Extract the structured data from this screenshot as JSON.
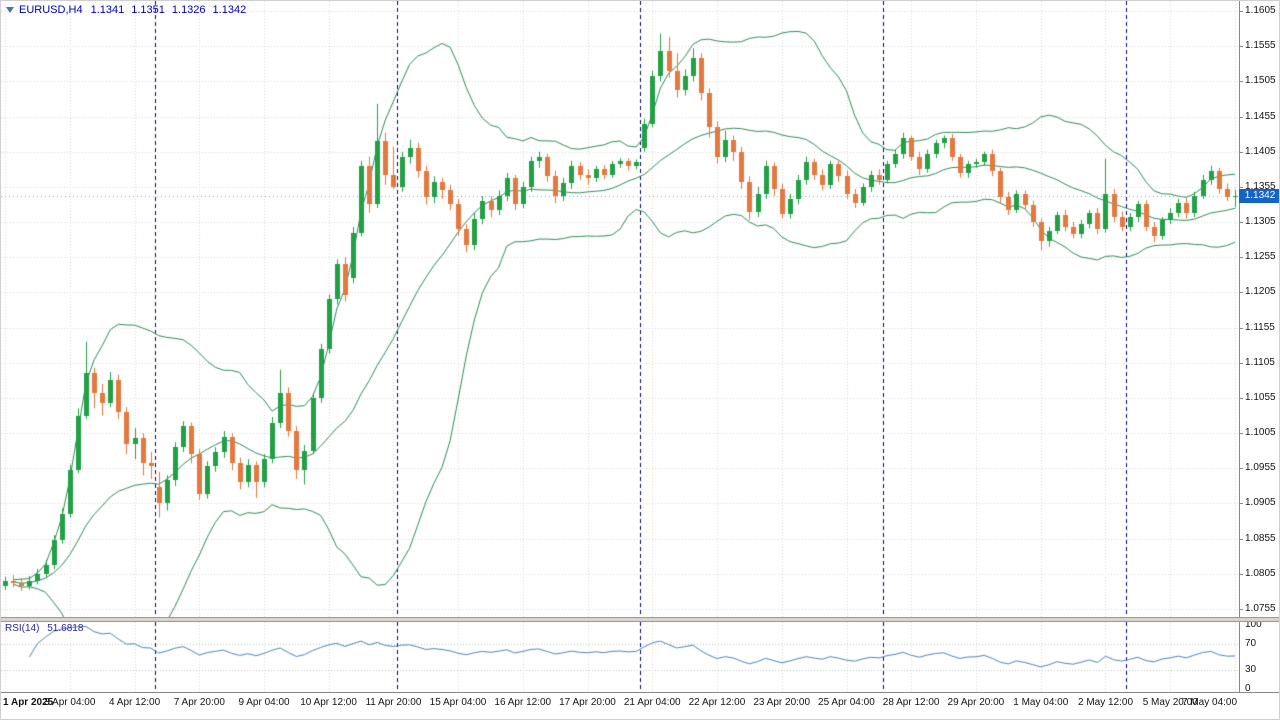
{
  "header": {
    "symbol": "EURUSD,H4",
    "open": "1.1341",
    "high": "1.1351",
    "low": "1.1326",
    "close": "1.1342"
  },
  "rsi_caption": {
    "name": "RSI(14)",
    "value": "51.6818"
  },
  "colors": {
    "bull": "#22a046",
    "bear": "#e4793f",
    "bands": "#2e8b57",
    "grid": "#d8d8d8",
    "separator": "#000080",
    "rsi": "#4f81bd",
    "rsi_level": "#c0c0c0",
    "price_line": "#7da7d9",
    "badge_bg": "#1464c8",
    "header_text": "#0000b4"
  },
  "chart_data": {
    "type": "candlestick",
    "symbol": "EURUSD",
    "timeframe": "H4",
    "price_axis": {
      "ticks": [
        "1.1605",
        "1.1555",
        "1.1505",
        "1.1455",
        "1.1405",
        "1.1355",
        "1.1305",
        "1.1255",
        "1.1205",
        "1.1155",
        "1.1105",
        "1.1055",
        "1.1005",
        "1.0955",
        "1.0905",
        "1.0855",
        "1.0805",
        "1.0755"
      ]
    },
    "time_labels": [
      {
        "t": "1 Apr 2025",
        "bar": 0
      },
      {
        "t": "3 Apr 04:00",
        "bar": 8
      },
      {
        "t": "4 Apr 12:00",
        "bar": 16
      },
      {
        "t": "7 Apr 20:00",
        "bar": 24
      },
      {
        "t": "9 Apr 04:00",
        "bar": 32
      },
      {
        "t": "10 Apr 12:00",
        "bar": 40
      },
      {
        "t": "11 Apr 20:00",
        "bar": 48
      },
      {
        "t": "15 Apr 04:00",
        "bar": 56
      },
      {
        "t": "16 Apr 12:00",
        "bar": 64
      },
      {
        "t": "17 Apr 20:00",
        "bar": 72
      },
      {
        "t": "21 Apr 04:00",
        "bar": 80
      },
      {
        "t": "22 Apr 12:00",
        "bar": 88
      },
      {
        "t": "23 Apr 20:00",
        "bar": 96
      },
      {
        "t": "25 Apr 04:00",
        "bar": 104
      },
      {
        "t": "28 Apr 12:00",
        "bar": 112
      },
      {
        "t": "29 Apr 20:00",
        "bar": 120
      },
      {
        "t": "1 May 04:00",
        "bar": 128
      },
      {
        "t": "2 May 12:00",
        "bar": 136
      },
      {
        "t": "5 May 20:00",
        "bar": 144
      },
      {
        "t": "7 May 04:00",
        "bar": 152
      }
    ],
    "separators": [
      19,
      49,
      79,
      109,
      139
    ],
    "indicators": {
      "bollinger": {
        "period": 20,
        "deviation": 2
      },
      "rsi": {
        "period": 14,
        "value": "51.6818",
        "levels": [
          100,
          70,
          30,
          0
        ]
      }
    },
    "current_price": "1.1342",
    "candles": [
      [
        1.0788,
        1.0801,
        1.0782,
        1.0795
      ],
      [
        1.0795,
        1.0803,
        1.0786,
        1.0792
      ],
      [
        1.0792,
        1.0799,
        1.0781,
        1.0788
      ],
      [
        1.0788,
        1.0802,
        1.0783,
        1.0795
      ],
      [
        1.0795,
        1.0812,
        1.079,
        1.0805
      ],
      [
        1.0805,
        1.0825,
        1.08,
        1.0818
      ],
      [
        1.0818,
        1.086,
        1.0812,
        1.0853
      ],
      [
        1.0853,
        1.0898,
        1.0848,
        1.089
      ],
      [
        1.089,
        1.096,
        1.0885,
        1.0953
      ],
      [
        1.0953,
        1.104,
        1.0948,
        1.103
      ],
      [
        1.103,
        1.1135,
        1.1025,
        1.109
      ],
      [
        1.109,
        1.1098,
        1.104,
        1.1062
      ],
      [
        1.1062,
        1.1075,
        1.103,
        1.1048
      ],
      [
        1.1048,
        1.1092,
        1.1042,
        1.108
      ],
      [
        1.108,
        1.1088,
        1.1025,
        1.1035
      ],
      [
        1.1035,
        1.1042,
        1.0975,
        1.099
      ],
      [
        1.099,
        1.1012,
        1.0968,
        1.0998
      ],
      [
        1.0998,
        1.1005,
        1.0945,
        1.0962
      ],
      [
        1.0962,
        1.0978,
        1.094,
        1.0958
      ],
      [
        1.0928,
        1.095,
        1.0885,
        1.0905
      ],
      [
        1.0905,
        1.0945,
        1.0895,
        1.0938
      ],
      [
        1.0938,
        1.0992,
        1.093,
        1.0985
      ],
      [
        1.0985,
        1.1022,
        1.0978,
        1.1015
      ],
      [
        1.1015,
        1.102,
        1.0962,
        1.0975
      ],
      [
        1.0975,
        1.0982,
        1.091,
        1.0918
      ],
      [
        1.0918,
        1.0965,
        1.0912,
        1.0958
      ],
      [
        1.0958,
        1.0985,
        1.095,
        1.0978
      ],
      [
        1.0978,
        1.1008,
        1.097,
        1.1
      ],
      [
        1.1,
        1.1005,
        1.0952,
        1.0962
      ],
      [
        1.0962,
        1.097,
        1.0925,
        1.0935
      ],
      [
        1.0935,
        1.0968,
        1.0928,
        1.096
      ],
      [
        1.096,
        1.0965,
        1.0913,
        1.0935
      ],
      [
        1.0935,
        1.0975,
        1.0928,
        1.0968
      ],
      [
        1.0968,
        1.1028,
        1.0962,
        1.102
      ],
      [
        1.102,
        1.1095,
        1.1012,
        1.1062
      ],
      [
        1.1062,
        1.107,
        1.1,
        1.1008
      ],
      [
        1.1008,
        1.1015,
        1.094,
        1.0952
      ],
      [
        1.0952,
        1.0988,
        1.0932,
        1.098
      ],
      [
        1.098,
        1.1062,
        1.0975,
        1.1055
      ],
      [
        1.1055,
        1.1132,
        1.1048,
        1.1125
      ],
      [
        1.1125,
        1.1202,
        1.1118,
        1.1195
      ],
      [
        1.1195,
        1.1252,
        1.1188,
        1.1245
      ],
      [
        1.1245,
        1.1255,
        1.1192,
        1.1202
      ],
      [
        1.1225,
        1.1298,
        1.1218,
        1.129
      ],
      [
        1.129,
        1.1392,
        1.1285,
        1.1385
      ],
      [
        1.1385,
        1.1398,
        1.1318,
        1.133
      ],
      [
        1.133,
        1.1473,
        1.1325,
        1.142
      ],
      [
        1.142,
        1.1432,
        1.1358,
        1.1372
      ],
      [
        1.1372,
        1.1412,
        1.1352,
        1.1355
      ],
      [
        1.1355,
        1.1405,
        1.1348,
        1.1398
      ],
      [
        1.1398,
        1.1422,
        1.1388,
        1.141
      ],
      [
        1.141,
        1.1418,
        1.1368,
        1.1378
      ],
      [
        1.1378,
        1.1385,
        1.133,
        1.134
      ],
      [
        1.134,
        1.137,
        1.1332,
        1.1362
      ],
      [
        1.1362,
        1.1368,
        1.1338,
        1.135
      ],
      [
        1.135,
        1.1358,
        1.1322,
        1.133
      ],
      [
        1.133,
        1.1338,
        1.1285,
        1.1295
      ],
      [
        1.1295,
        1.1302,
        1.1262,
        1.1272
      ],
      [
        1.1272,
        1.1318,
        1.1265,
        1.131
      ],
      [
        1.131,
        1.1342,
        1.1302,
        1.1335
      ],
      [
        1.1335,
        1.1342,
        1.1312,
        1.1322
      ],
      [
        1.1322,
        1.135,
        1.1315,
        1.1342
      ],
      [
        1.1342,
        1.1375,
        1.1335,
        1.1368
      ],
      [
        1.1368,
        1.1372,
        1.1322,
        1.133
      ],
      [
        1.133,
        1.1362,
        1.1325,
        1.1355
      ],
      [
        1.1355,
        1.1398,
        1.1348,
        1.1392
      ],
      [
        1.1392,
        1.1405,
        1.1382,
        1.1398
      ],
      [
        1.1398,
        1.1402,
        1.1362,
        1.137
      ],
      [
        1.137,
        1.1378,
        1.1332,
        1.1342
      ],
      [
        1.1342,
        1.1368,
        1.1335,
        1.136
      ],
      [
        1.136,
        1.1392,
        1.1352,
        1.1385
      ],
      [
        1.1385,
        1.139,
        1.1365,
        1.1372
      ],
      [
        1.1372,
        1.138,
        1.1358,
        1.1368
      ],
      [
        1.1368,
        1.1385,
        1.1362,
        1.138
      ],
      [
        1.138,
        1.1386,
        1.1366,
        1.1372
      ],
      [
        1.1372,
        1.1392,
        1.1368,
        1.1388
      ],
      [
        1.1388,
        1.1396,
        1.1382,
        1.1392
      ],
      [
        1.1392,
        1.1396,
        1.1378,
        1.1385
      ],
      [
        1.1385,
        1.1394,
        1.138,
        1.139
      ],
      [
        1.141,
        1.1452,
        1.1405,
        1.1445
      ],
      [
        1.1445,
        1.152,
        1.144,
        1.1512
      ],
      [
        1.1512,
        1.1573,
        1.1505,
        1.1548
      ],
      [
        1.1548,
        1.1568,
        1.151,
        1.152
      ],
      [
        1.152,
        1.1545,
        1.1482,
        1.1492
      ],
      [
        1.1492,
        1.1522,
        1.1485,
        1.1512
      ],
      [
        1.1512,
        1.1552,
        1.1505,
        1.1538
      ],
      [
        1.1538,
        1.1545,
        1.1478,
        1.1488
      ],
      [
        1.1488,
        1.1495,
        1.1425,
        1.144
      ],
      [
        1.144,
        1.1448,
        1.1388,
        1.1398
      ],
      [
        1.1398,
        1.1435,
        1.139,
        1.1422
      ],
      [
        1.1422,
        1.1428,
        1.1392,
        1.1405
      ],
      [
        1.1405,
        1.1412,
        1.1352,
        1.1362
      ],
      [
        1.1362,
        1.137,
        1.1308,
        1.132
      ],
      [
        1.132,
        1.1355,
        1.1312,
        1.1345
      ],
      [
        1.1345,
        1.1392,
        1.1338,
        1.1385
      ],
      [
        1.1385,
        1.139,
        1.1342,
        1.1352
      ],
      [
        1.1352,
        1.136,
        1.131,
        1.1316
      ],
      [
        1.1316,
        1.1345,
        1.131,
        1.1338
      ],
      [
        1.1338,
        1.1372,
        1.133,
        1.1365
      ],
      [
        1.1365,
        1.1398,
        1.1358,
        1.139
      ],
      [
        1.139,
        1.1395,
        1.1365,
        1.1372
      ],
      [
        1.1372,
        1.138,
        1.135,
        1.1358
      ],
      [
        1.1358,
        1.1392,
        1.1352,
        1.1388
      ],
      [
        1.1388,
        1.1392,
        1.1362,
        1.137
      ],
      [
        1.137,
        1.1378,
        1.1338,
        1.1345
      ],
      [
        1.1345,
        1.1352,
        1.1325,
        1.1332
      ],
      [
        1.1332,
        1.136,
        1.1328,
        1.1355
      ],
      [
        1.1355,
        1.1378,
        1.1348,
        1.1372
      ],
      [
        1.1372,
        1.138,
        1.1358,
        1.1365
      ],
      [
        1.1365,
        1.1392,
        1.136,
        1.1388
      ],
      [
        1.1388,
        1.1408,
        1.1382,
        1.1402
      ],
      [
        1.1402,
        1.1432,
        1.1395,
        1.1425
      ],
      [
        1.1425,
        1.1428,
        1.1392,
        1.1398
      ],
      [
        1.1398,
        1.1405,
        1.1372,
        1.138
      ],
      [
        1.138,
        1.1408,
        1.1375,
        1.1402
      ],
      [
        1.1402,
        1.1422,
        1.1396,
        1.1418
      ],
      [
        1.1418,
        1.1428,
        1.141,
        1.1425
      ],
      [
        1.1425,
        1.143,
        1.1392,
        1.1398
      ],
      [
        1.1398,
        1.1402,
        1.1368,
        1.1375
      ],
      [
        1.1375,
        1.1392,
        1.1368,
        1.1388
      ],
      [
        1.1388,
        1.1395,
        1.1382,
        1.139
      ],
      [
        1.139,
        1.1405,
        1.1385,
        1.1402
      ],
      [
        1.1402,
        1.1408,
        1.137,
        1.1378
      ],
      [
        1.1378,
        1.1382,
        1.1332,
        1.134
      ],
      [
        1.134,
        1.1348,
        1.1315,
        1.1322
      ],
      [
        1.1322,
        1.135,
        1.1318,
        1.1345
      ],
      [
        1.1345,
        1.135,
        1.1322,
        1.1329
      ],
      [
        1.1329,
        1.1335,
        1.1298,
        1.1305
      ],
      [
        1.1305,
        1.131,
        1.1265,
        1.1278
      ],
      [
        1.1278,
        1.1298,
        1.127,
        1.1292
      ],
      [
        1.1292,
        1.132,
        1.1288,
        1.1315
      ],
      [
        1.1315,
        1.1322,
        1.1292,
        1.1298
      ],
      [
        1.1298,
        1.1305,
        1.1282,
        1.1288
      ],
      [
        1.1288,
        1.1308,
        1.1282,
        1.1302
      ],
      [
        1.1302,
        1.1322,
        1.1296,
        1.1318
      ],
      [
        1.1318,
        1.1325,
        1.1288,
        1.1295
      ],
      [
        1.1295,
        1.1395,
        1.129,
        1.1345
      ],
      [
        1.1345,
        1.1352,
        1.1305,
        1.1312
      ],
      [
        1.1312,
        1.132,
        1.1292,
        1.1298
      ],
      [
        1.1298,
        1.1318,
        1.1292,
        1.1312
      ],
      [
        1.1312,
        1.1335,
        1.1305,
        1.133
      ],
      [
        1.133,
        1.1336,
        1.1292,
        1.1298
      ],
      [
        1.1298,
        1.1305,
        1.1276,
        1.1285
      ],
      [
        1.1285,
        1.1312,
        1.128,
        1.1308
      ],
      [
        1.1308,
        1.1325,
        1.1302,
        1.1318
      ],
      [
        1.1318,
        1.1338,
        1.1312,
        1.1332
      ],
      [
        1.1332,
        1.134,
        1.131,
        1.1318
      ],
      [
        1.1318,
        1.1348,
        1.1312,
        1.1342
      ],
      [
        1.1342,
        1.1372,
        1.1338,
        1.1365
      ],
      [
        1.1365,
        1.1385,
        1.1358,
        1.1378
      ],
      [
        1.1378,
        1.1382,
        1.1345,
        1.1352
      ],
      [
        1.1352,
        1.136,
        1.1335,
        1.1341
      ],
      [
        1.1341,
        1.1351,
        1.1326,
        1.1342
      ]
    ]
  }
}
